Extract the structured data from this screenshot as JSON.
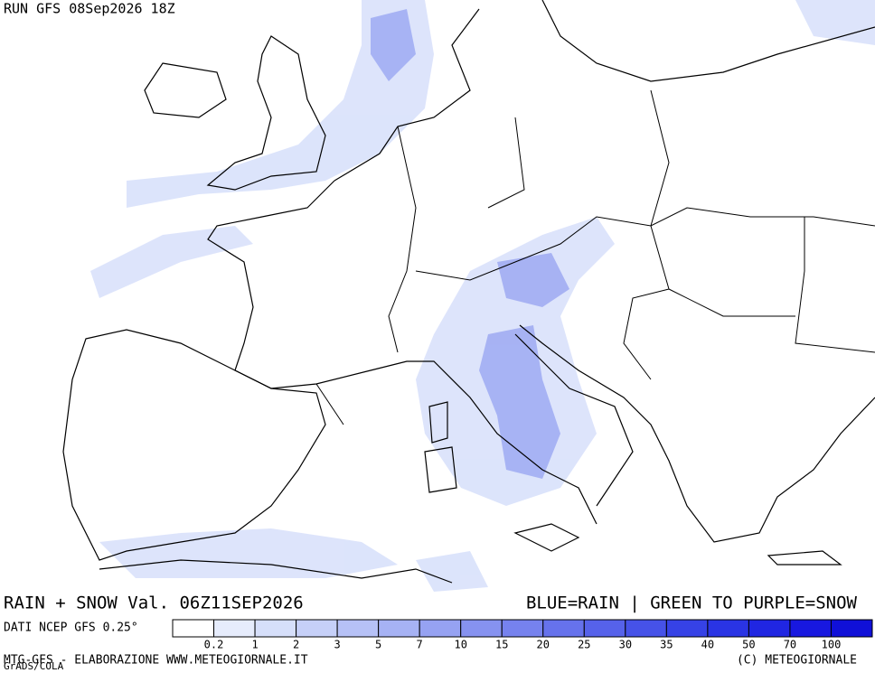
{
  "header": {
    "run": "RUN GFS 08Sep2026 18Z"
  },
  "legend": {
    "field": "RAIN + SNOW Val. 06Z11SEP2026",
    "note": "BLUE=RAIN | GREEN TO PURPLE=SNOW",
    "source": "DATI NCEP GFS 0.25°",
    "levels": [
      0.2,
      1,
      2,
      3,
      5,
      7,
      10,
      15,
      20,
      25,
      30,
      35,
      40,
      50,
      70,
      100
    ],
    "colors": [
      "#ffffff",
      "#e6ecfc",
      "#d6dffa",
      "#c6d0f8",
      "#b6c1f6",
      "#a6b2f4",
      "#96a2f2",
      "#8692f0",
      "#7682ee",
      "#6672ec",
      "#5662ea",
      "#4652e8",
      "#3642e6",
      "#2a34e4",
      "#2026e2",
      "#1818e0",
      "#1010d8"
    ]
  },
  "footer": {
    "credit": "MTG-GFS - ELABORAZIONE WWW.METEOGIORNALE.IT",
    "grads": "GrADS/COLA",
    "copyright": "(C) METEOGIORNALE"
  }
}
